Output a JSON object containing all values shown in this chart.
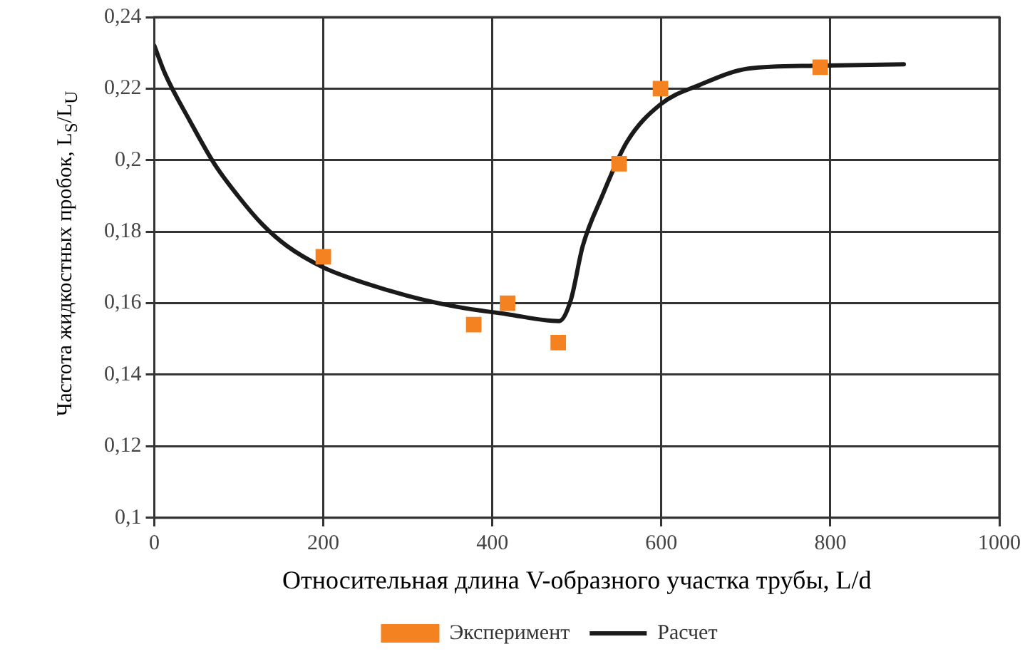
{
  "chart_data": {
    "type": "line",
    "xlabel": "Относительная длина V-образного участка трубы, L/d",
    "ylabel": "Частота жидкостных пробок, L$_{S}$/L$_{U}$",
    "xlim": [
      0,
      1000
    ],
    "xticks": [
      0,
      200,
      400,
      600,
      800,
      1000
    ],
    "ylim": [
      0.1,
      0.24
    ],
    "yticks": [
      {
        "value": 0.1,
        "label": "0,1"
      },
      {
        "value": 0.12,
        "label": "0,12"
      },
      {
        "value": 0.14,
        "label": "0,14"
      },
      {
        "value": 0.16,
        "label": "0,16"
      },
      {
        "value": 0.18,
        "label": "0,18"
      },
      {
        "value": 0.2,
        "label": "0,2"
      },
      {
        "value": 0.22,
        "label": "0,22"
      },
      {
        "value": 0.24,
        "label": "0,24"
      }
    ],
    "grid": true,
    "legend": "bottom",
    "series": [
      {
        "name": "Эксперимент",
        "type": "scatter",
        "marker": "square",
        "color": "#f58220",
        "x": [
          200,
          378,
          418,
          478,
          550,
          599,
          788
        ],
        "values": [
          0.173,
          0.154,
          0.16,
          0.149,
          0.199,
          0.22,
          0.226
        ]
      },
      {
        "name": "Расчет",
        "type": "line",
        "marker": "none",
        "line_style": "solid",
        "color": "#1a1a1a",
        "x": [
          0,
          13,
          42,
          71,
          99,
          128,
          157,
          200,
          232,
          301,
          358,
          416,
          479,
          493,
          507,
          530,
          559,
          599,
          645,
          703,
          782,
          887
        ],
        "values": [
          0.232,
          0.224,
          0.211,
          0.199,
          0.19,
          0.182,
          0.176,
          0.17,
          0.167,
          0.162,
          0.159,
          0.157,
          0.155,
          0.161,
          0.176,
          0.19,
          0.205,
          0.2156,
          0.221,
          0.2256,
          0.2264,
          0.2268
        ]
      }
    ]
  }
}
